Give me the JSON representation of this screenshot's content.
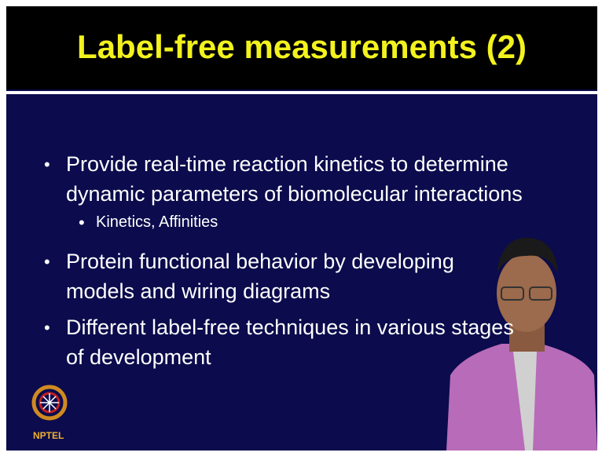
{
  "header": {
    "title": "Label-free measurements (2)"
  },
  "bullets": [
    {
      "lines": [
        "Provide real-time reaction kinetics to determine",
        "dynamic parameters of biomolecular interactions"
      ],
      "sub": [
        "Kinetics, Affinities"
      ]
    },
    {
      "lines": [
        "Protein functional behavior by developing",
        "models and wiring diagrams"
      ]
    },
    {
      "lines": [
        "Different label-free techniques in various stages",
        "of development"
      ]
    }
  ],
  "logo": {
    "label": "NPTEL"
  }
}
